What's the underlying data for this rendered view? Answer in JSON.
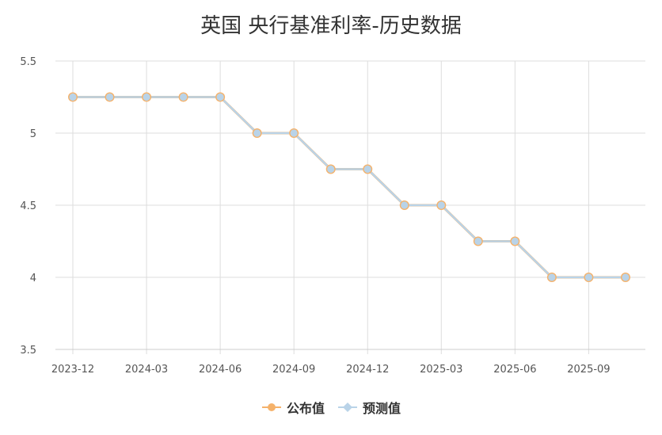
{
  "chart_data": {
    "type": "line",
    "title": "英国 央行基准利率-历史数据",
    "x": [
      "2023-12",
      "2024-02",
      "2024-03",
      "2024-05",
      "2024-06",
      "2024-08",
      "2024-09",
      "2024-11",
      "2024-12",
      "2025-02",
      "2025-03",
      "2025-05",
      "2025-06",
      "2025-08",
      "2025-09",
      "2025-11"
    ],
    "x_tick_labels": [
      "2023-12",
      "2024-03",
      "2024-06",
      "2024-09",
      "2024-12",
      "2025-03",
      "2025-06",
      "2025-09"
    ],
    "y_ticks": [
      "3.5",
      "4",
      "4.5",
      "5",
      "5.5"
    ],
    "ylim": [
      3.5,
      5.5
    ],
    "grid": true,
    "legend_position": "bottom",
    "series": [
      {
        "name": "公布值",
        "color": "#f5b26b",
        "values": [
          5.25,
          5.25,
          5.25,
          5.25,
          5.25,
          5.0,
          5.0,
          4.75,
          4.75,
          4.5,
          4.5,
          4.25,
          4.25,
          4.0,
          4.0,
          4.0
        ]
      },
      {
        "name": "预测值",
        "color": "#b9d3e8",
        "values": [
          5.25,
          5.25,
          5.25,
          5.25,
          5.25,
          5.0,
          5.0,
          4.75,
          4.75,
          4.5,
          4.5,
          4.25,
          4.25,
          4.0,
          4.0,
          4.0
        ]
      }
    ]
  }
}
